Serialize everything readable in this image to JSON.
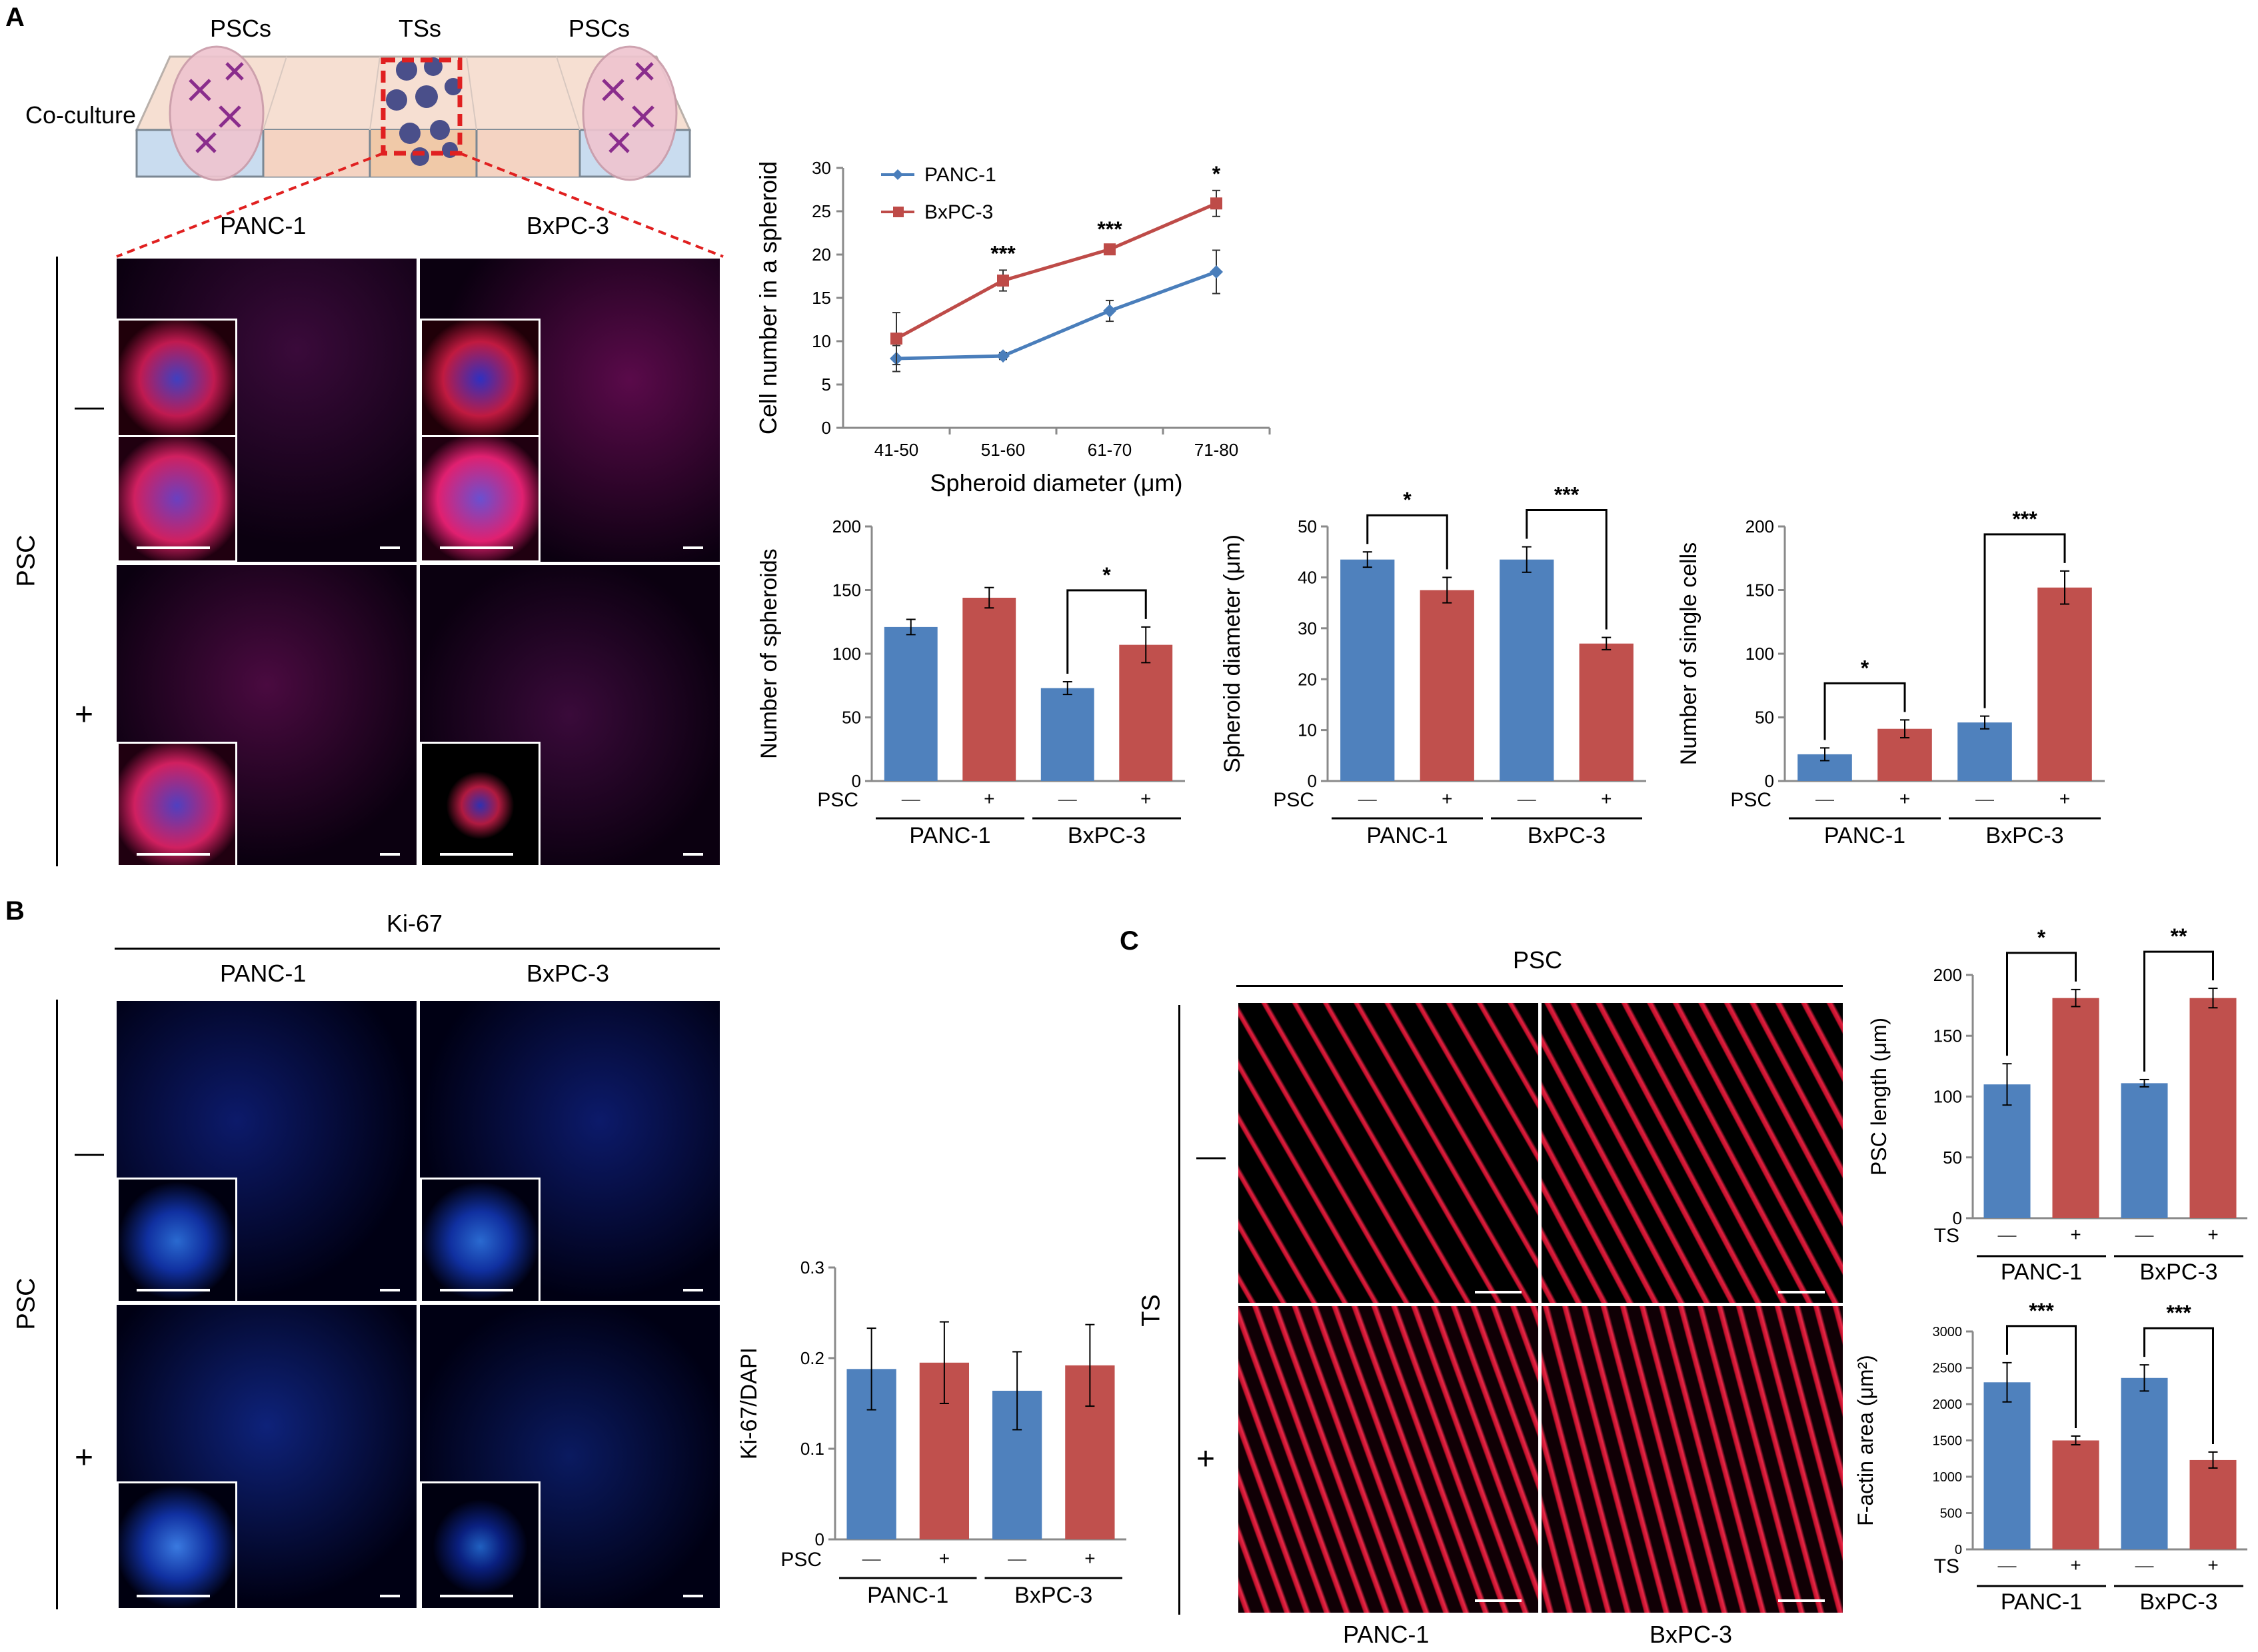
{
  "panels": {
    "A": "A",
    "B": "B",
    "C": "C"
  },
  "schematic": {
    "psc_left": "PSCs",
    "ts_center": "TSs",
    "psc_right": "PSCs",
    "coculture": "Co-culture"
  },
  "imaging_A": {
    "col_left": "PANC-1",
    "col_right": "BxPC-3",
    "row_axis": "PSC",
    "row_minus": "—",
    "row_plus": "+"
  },
  "imaging_B": {
    "stain": "Ki-67",
    "col_left": "PANC-1",
    "col_right": "BxPC-3",
    "row_axis": "PSC",
    "row_minus": "—",
    "row_plus": "+"
  },
  "imaging_C": {
    "top": "PSC",
    "row_axis": "TS",
    "row_minus": "—",
    "row_plus": "+",
    "col_left": "PANC-1",
    "col_right": "BxPC-3"
  },
  "colors": {
    "blue": "#4f81bd",
    "red": "#c0504d",
    "blue_line": "#4a7ebb",
    "red_line": "#be4b48"
  },
  "chart_data": [
    {
      "id": "line",
      "type": "line",
      "xlabel": "Spheroid diameter (μm)",
      "ylabel": "Cell number in a spheroid",
      "categories": [
        "41-50",
        "51-60",
        "61-70",
        "71-80"
      ],
      "ylim": [
        0,
        30
      ],
      "yticks": [
        "0",
        "5",
        "10",
        "15",
        "20",
        "25",
        "30"
      ],
      "series": [
        {
          "name": "PANC-1",
          "values": [
            8,
            8.3,
            13.5,
            18
          ],
          "err": [
            1.5,
            0.4,
            1.2,
            2.5
          ]
        },
        {
          "name": "BxPC-3",
          "values": [
            10.3,
            17,
            20.6,
            25.9
          ],
          "err": [
            3,
            1.2,
            0.4,
            1.5
          ]
        }
      ],
      "annotations": [
        "",
        "***",
        "***",
        "*"
      ],
      "legend": "top-left"
    },
    {
      "id": "spheroids",
      "type": "bar",
      "ylabel": "Number of spheroids",
      "ylim": [
        0,
        200
      ],
      "yticks": [
        "0",
        "50",
        "100",
        "150",
        "200"
      ],
      "factor": "PSC",
      "signs": [
        "—",
        "+",
        "—",
        "+"
      ],
      "groups": [
        "PANC-1",
        "BxPC-3"
      ],
      "values": [
        121,
        144,
        73,
        107
      ],
      "err": [
        6,
        8,
        5,
        14
      ],
      "sig": [
        {
          "pair": 1,
          "label": "*"
        }
      ]
    },
    {
      "id": "diameter",
      "type": "bar",
      "ylabel": "Spheroid diameter (μm)",
      "ylim": [
        0,
        50
      ],
      "yticks": [
        "0",
        "10",
        "20",
        "30",
        "40",
        "50"
      ],
      "factor": "PSC",
      "signs": [
        "—",
        "+",
        "—",
        "+"
      ],
      "groups": [
        "PANC-1",
        "BxPC-3"
      ],
      "values": [
        43.5,
        37.5,
        43.5,
        27
      ],
      "err": [
        1.5,
        2.5,
        2.5,
        1.2
      ],
      "sig": [
        {
          "pair": 0,
          "label": "*"
        },
        {
          "pair": 1,
          "label": "***"
        }
      ]
    },
    {
      "id": "singles",
      "type": "bar",
      "ylabel": "Number of single cells",
      "ylim": [
        0,
        200
      ],
      "yticks": [
        "0",
        "50",
        "100",
        "150",
        "200"
      ],
      "factor": "PSC",
      "signs": [
        "—",
        "+",
        "—",
        "+"
      ],
      "groups": [
        "PANC-1",
        "BxPC-3"
      ],
      "values": [
        21,
        41,
        46,
        152
      ],
      "err": [
        5,
        7,
        5,
        13
      ],
      "sig": [
        {
          "pair": 0,
          "label": "*"
        },
        {
          "pair": 1,
          "label": "***"
        }
      ]
    },
    {
      "id": "ki67",
      "type": "bar",
      "ylabel": "Ki-67/DAPI",
      "ylim": [
        0,
        0.3
      ],
      "yticks": [
        "0",
        "0.1",
        "0.2",
        "0.3"
      ],
      "factor": "PSC",
      "signs": [
        "—",
        "+",
        "—",
        "+"
      ],
      "groups": [
        "PANC-1",
        "BxPC-3"
      ],
      "values": [
        0.188,
        0.195,
        0.164,
        0.192
      ],
      "err": [
        0.045,
        0.045,
        0.043,
        0.045
      ],
      "sig": []
    },
    {
      "id": "psclen",
      "type": "bar",
      "ylabel": "PSC length (μm)",
      "ylim": [
        0,
        200
      ],
      "yticks": [
        "0",
        "50",
        "100",
        "150",
        "200"
      ],
      "factor": "TS",
      "signs": [
        "—",
        "+",
        "—",
        "+"
      ],
      "groups": [
        "PANC-1",
        "BxPC-3"
      ],
      "values": [
        110,
        181,
        111,
        181
      ],
      "err": [
        17,
        7,
        3,
        8
      ],
      "sig": [
        {
          "pair": 0,
          "label": "*"
        },
        {
          "pair": 1,
          "label": "**"
        }
      ]
    },
    {
      "id": "factin",
      "type": "bar",
      "ylabel": "F-actin area (μm²)",
      "ylim": [
        0,
        3000
      ],
      "yticks": [
        "0",
        "500",
        "1000",
        "1500",
        "2000",
        "2500",
        "3000"
      ],
      "factor": "TS",
      "signs": [
        "—",
        "+",
        "—",
        "+"
      ],
      "groups": [
        "PANC-1",
        "BxPC-3"
      ],
      "values": [
        2300,
        1500,
        2360,
        1230
      ],
      "err": [
        270,
        60,
        180,
        110
      ],
      "sig": [
        {
          "pair": 0,
          "label": "***"
        },
        {
          "pair": 1,
          "label": "***"
        }
      ]
    }
  ]
}
